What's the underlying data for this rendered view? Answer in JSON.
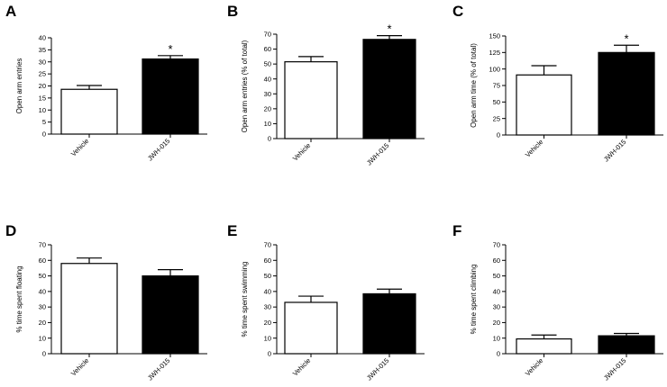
{
  "chart_data": [
    {
      "panel": "A",
      "type": "bar",
      "ylabel": "Open arm entries",
      "ylim": [
        0,
        40
      ],
      "yticks": [
        0,
        5,
        10,
        15,
        20,
        25,
        30,
        35,
        40
      ],
      "categories": [
        "Vehicle",
        "JWH-015"
      ],
      "values": [
        18.6,
        31.2
      ],
      "errors": [
        1.6,
        1.4
      ],
      "colors": [
        "#ffffff",
        "#000000"
      ],
      "significance": [
        "",
        "*"
      ]
    },
    {
      "panel": "B",
      "type": "bar",
      "ylabel": "Open arm entries (% of total)",
      "ylim": [
        0,
        70
      ],
      "yticks": [
        0,
        10,
        20,
        30,
        40,
        50,
        60,
        70
      ],
      "categories": [
        "Vehicle",
        "JWH-015"
      ],
      "values": [
        51.5,
        66.5
      ],
      "errors": [
        3.5,
        2.5
      ],
      "colors": [
        "#ffffff",
        "#000000"
      ],
      "significance": [
        "",
        "*"
      ]
    },
    {
      "panel": "C",
      "type": "bar",
      "ylabel": "Open arm time (% of total)",
      "ylim": [
        0,
        150
      ],
      "yticks": [
        0,
        25,
        50,
        75,
        100,
        125,
        150
      ],
      "categories": [
        "Vehicle",
        "JWH-015"
      ],
      "values": [
        91,
        125
      ],
      "errors": [
        14,
        11
      ],
      "colors": [
        "#ffffff",
        "#000000"
      ],
      "significance": [
        "",
        "*"
      ]
    },
    {
      "panel": "D",
      "type": "bar",
      "ylabel": "% time spent floating",
      "ylim": [
        0,
        70
      ],
      "yticks": [
        0,
        10,
        20,
        30,
        40,
        50,
        60,
        70
      ],
      "categories": [
        "Vehicle",
        "JWH-015"
      ],
      "values": [
        58,
        50
      ],
      "errors": [
        3.5,
        4
      ],
      "colors": [
        "#ffffff",
        "#000000"
      ],
      "significance": [
        "",
        ""
      ]
    },
    {
      "panel": "E",
      "type": "bar",
      "ylabel": "% time spent swimming",
      "ylim": [
        0,
        70
      ],
      "yticks": [
        0,
        10,
        20,
        30,
        40,
        50,
        60,
        70
      ],
      "categories": [
        "Vehicle",
        "JWH-015"
      ],
      "values": [
        33,
        38.5
      ],
      "errors": [
        4,
        3
      ],
      "colors": [
        "#ffffff",
        "#000000"
      ],
      "significance": [
        "",
        ""
      ]
    },
    {
      "panel": "F",
      "type": "bar",
      "ylabel": "% time spent climbing",
      "ylim": [
        0,
        70
      ],
      "yticks": [
        0,
        10,
        20,
        30,
        40,
        50,
        60,
        70
      ],
      "categories": [
        "Vehicle",
        "JWH-015"
      ],
      "values": [
        9.5,
        11.5
      ],
      "errors": [
        2.5,
        1.5
      ],
      "colors": [
        "#ffffff",
        "#000000"
      ],
      "significance": [
        "",
        ""
      ]
    }
  ]
}
